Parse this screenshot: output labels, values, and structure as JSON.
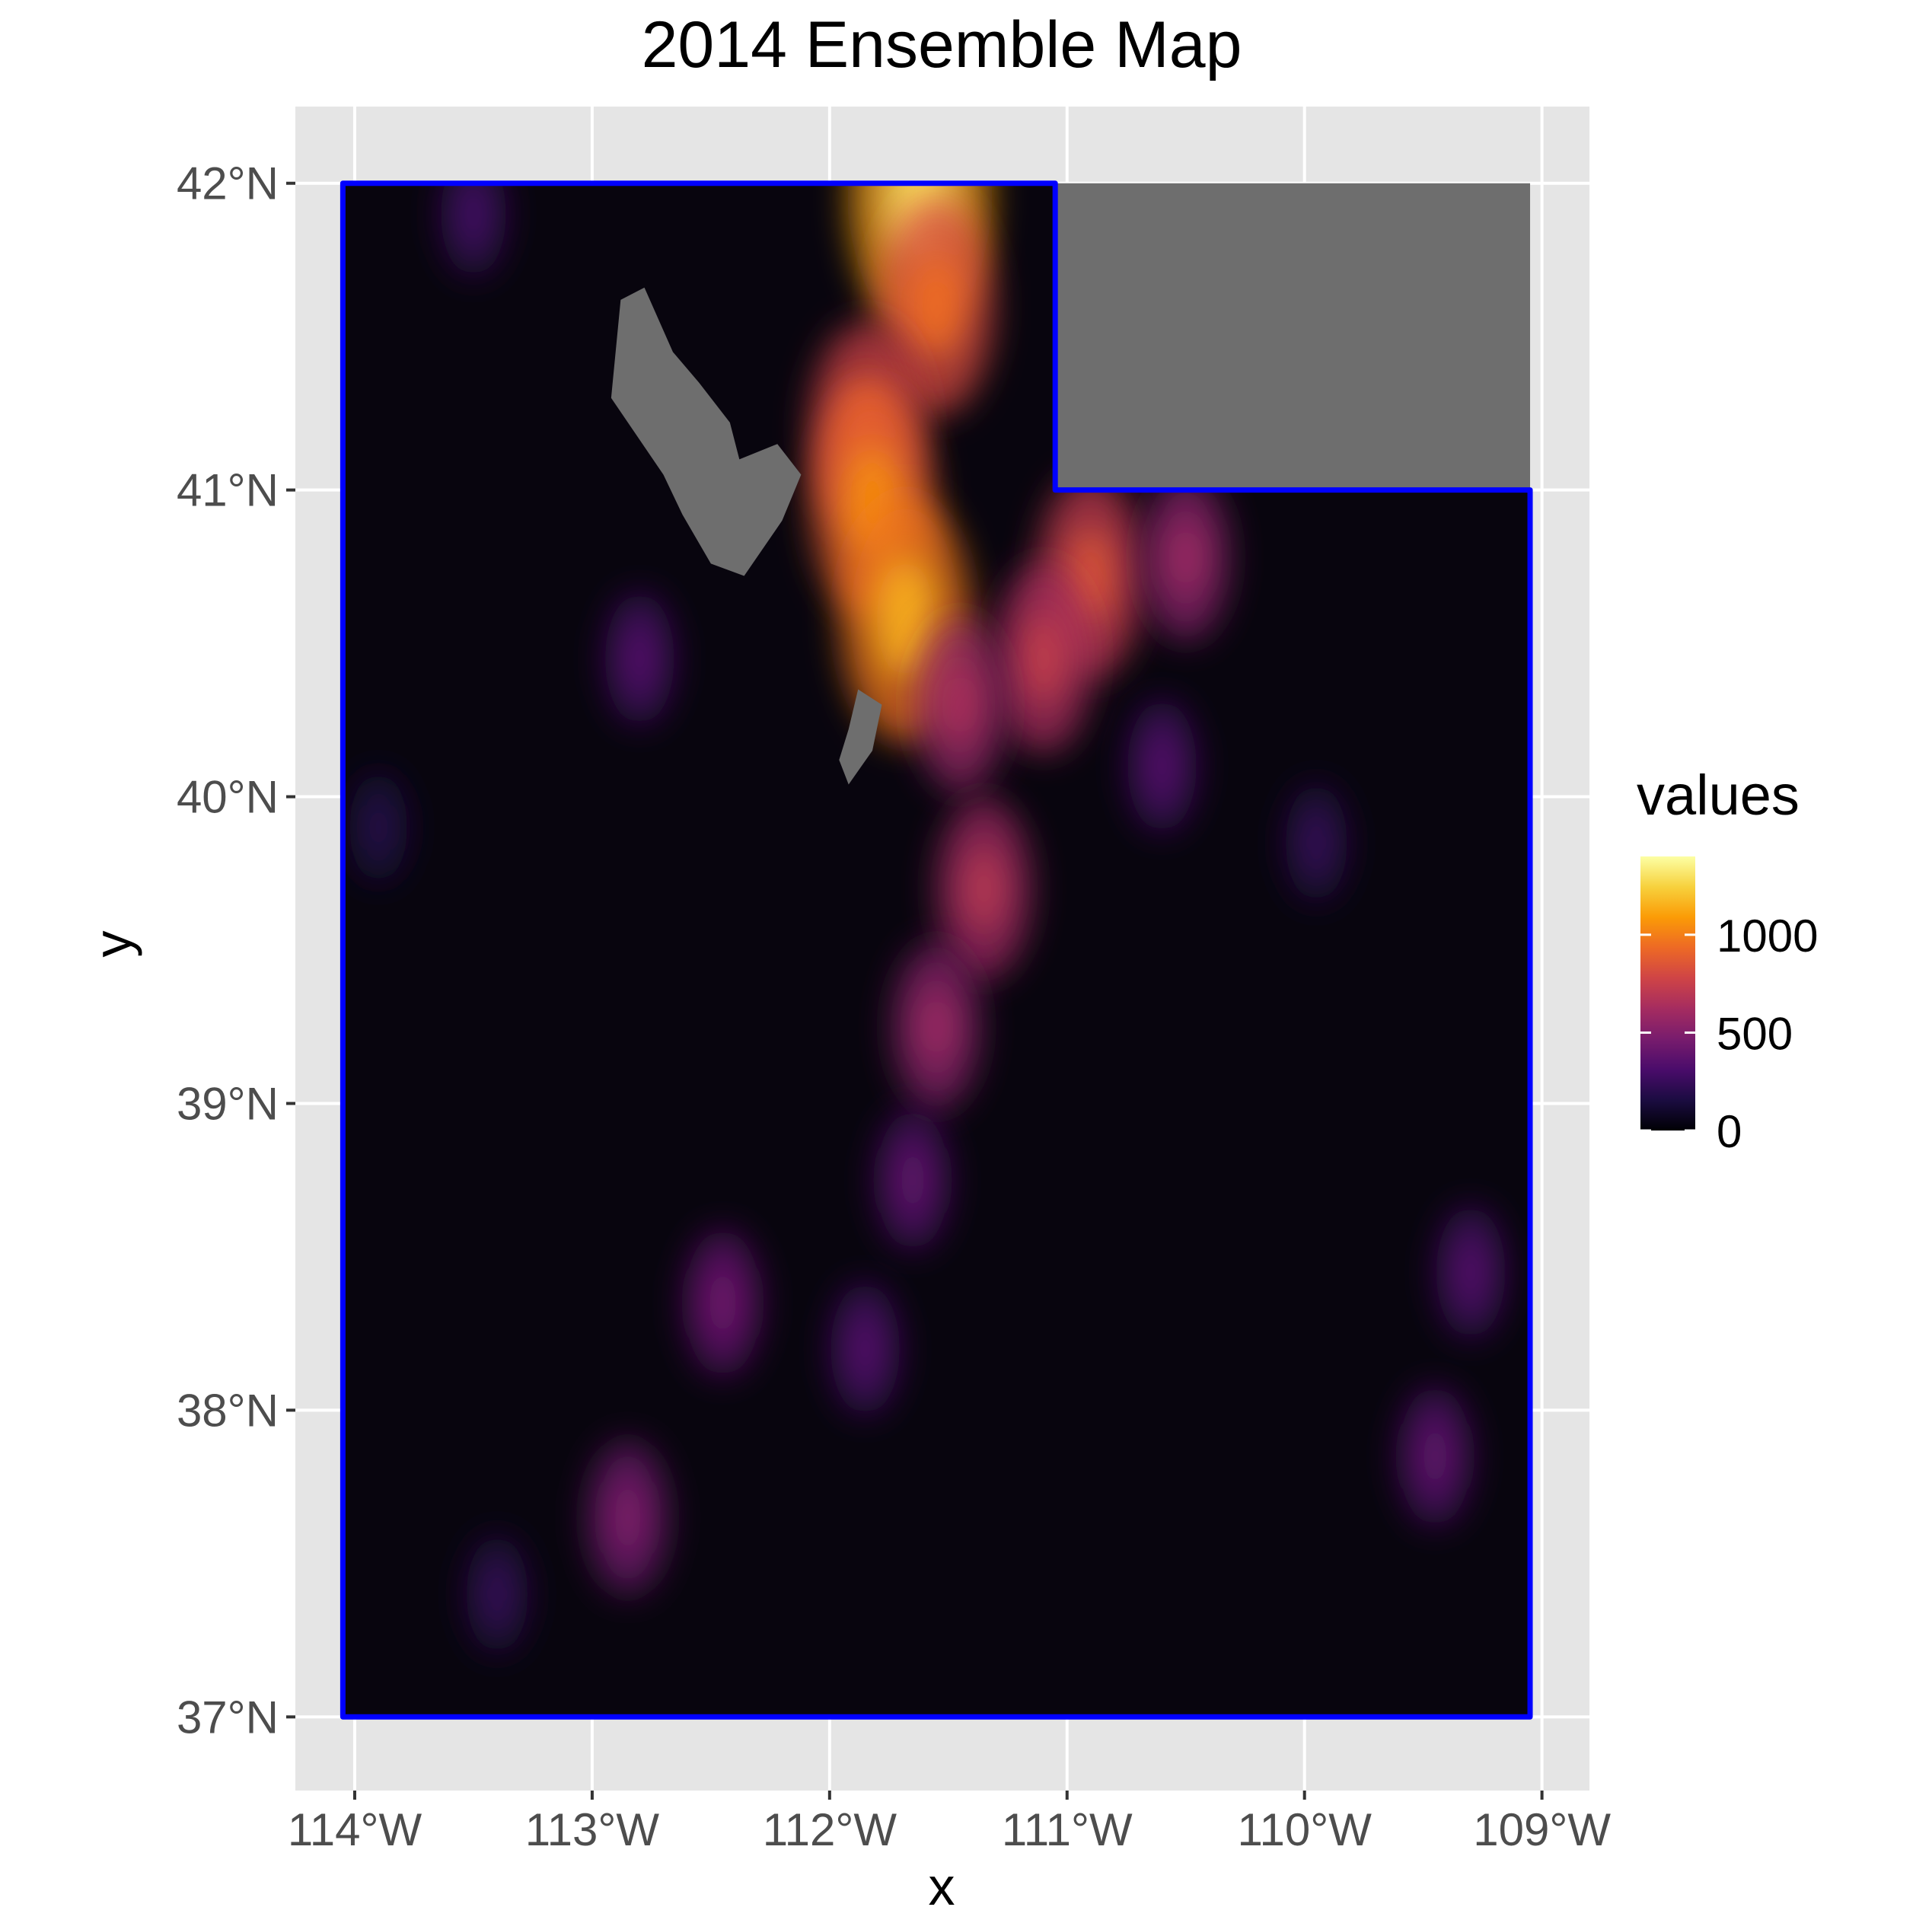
{
  "title": "2014 Ensemble Map",
  "x_label": "x",
  "y_label": "y",
  "x_ticks": [
    {
      "value": -114,
      "label": "114°W"
    },
    {
      "value": -113,
      "label": "113°W"
    },
    {
      "value": -112,
      "label": "112°W"
    },
    {
      "value": -111,
      "label": "111°W"
    },
    {
      "value": -110,
      "label": "110°W"
    },
    {
      "value": -109,
      "label": "109°W"
    }
  ],
  "y_ticks": [
    {
      "value": 37,
      "label": "37°N"
    },
    {
      "value": 38,
      "label": "38°N"
    },
    {
      "value": 39,
      "label": "39°N"
    },
    {
      "value": 40,
      "label": "40°N"
    },
    {
      "value": 41,
      "label": "41°N"
    },
    {
      "value": 42,
      "label": "42°N"
    }
  ],
  "legend": {
    "title": "values",
    "breaks": [
      {
        "value": 0,
        "label": "0"
      },
      {
        "value": 500,
        "label": "500"
      },
      {
        "value": 1000,
        "label": "1000"
      }
    ],
    "range": [
      0,
      1400
    ],
    "colormap": [
      "#000004",
      "#1b0c41",
      "#4a0c6b",
      "#781c6d",
      "#a52c60",
      "#cf4446",
      "#ed6925",
      "#fb9b06",
      "#f7d13d",
      "#fcffa4"
    ]
  },
  "colors": {
    "panel_background": "#e5e5e5",
    "grid": "#ffffff",
    "boundary": "#0000ff",
    "na_fill": "#6e6e6e",
    "base_fill": "#08050e"
  },
  "chart_data": {
    "type": "heatmap",
    "title": "2014 Ensemble Map",
    "xlabel": "x",
    "ylabel": "y",
    "xlim": [
      -114.25,
      -108.8
    ],
    "ylim": [
      36.76,
      42.25
    ],
    "value_range": [
      0,
      1400
    ],
    "boundary": "Utah state outline",
    "boundary_vertices": [
      {
        "x": -114.05,
        "y": 42.0
      },
      {
        "x": -111.05,
        "y": 42.0
      },
      {
        "x": -111.05,
        "y": 41.0
      },
      {
        "x": -109.05,
        "y": 41.0
      },
      {
        "x": -109.05,
        "y": 37.0
      },
      {
        "x": -114.05,
        "y": 37.0
      }
    ],
    "na_regions": [
      {
        "name": "wyoming corner",
        "points": [
          [
            -111.05,
            42.0
          ],
          [
            -109.05,
            42.0
          ],
          [
            -109.05,
            41.0
          ],
          [
            -111.05,
            41.0
          ]
        ]
      },
      {
        "name": "great salt lake",
        "points": [
          [
            -112.88,
            41.62
          ],
          [
            -112.78,
            41.66
          ],
          [
            -112.66,
            41.45
          ],
          [
            -112.55,
            41.35
          ],
          [
            -112.42,
            41.22
          ],
          [
            -112.38,
            41.1
          ],
          [
            -112.22,
            41.15
          ],
          [
            -112.12,
            41.05
          ],
          [
            -112.2,
            40.9
          ],
          [
            -112.36,
            40.72
          ],
          [
            -112.5,
            40.76
          ],
          [
            -112.62,
            40.92
          ],
          [
            -112.7,
            41.05
          ],
          [
            -112.92,
            41.3
          ]
        ]
      },
      {
        "name": "utah lake",
        "points": [
          [
            -111.88,
            40.35
          ],
          [
            -111.78,
            40.3
          ],
          [
            -111.82,
            40.15
          ],
          [
            -111.92,
            40.04
          ],
          [
            -111.96,
            40.12
          ],
          [
            -111.92,
            40.22
          ]
        ]
      }
    ],
    "hotspots": [
      {
        "x": -111.62,
        "y": 41.95,
        "value": 1300
      },
      {
        "x": -111.55,
        "y": 41.6,
        "value": 950
      },
      {
        "x": -111.85,
        "y": 41.2,
        "value": 900
      },
      {
        "x": -111.82,
        "y": 40.96,
        "value": 1050
      },
      {
        "x": -111.68,
        "y": 40.58,
        "value": 1150
      },
      {
        "x": -110.9,
        "y": 40.72,
        "value": 850
      },
      {
        "x": -110.5,
        "y": 40.78,
        "value": 600
      },
      {
        "x": -111.1,
        "y": 40.45,
        "value": 750
      },
      {
        "x": -111.45,
        "y": 40.3,
        "value": 650
      },
      {
        "x": -111.35,
        "y": 39.7,
        "value": 700
      },
      {
        "x": -111.55,
        "y": 39.25,
        "value": 600
      },
      {
        "x": -110.6,
        "y": 40.1,
        "value": 350
      },
      {
        "x": -109.95,
        "y": 39.85,
        "value": 250
      },
      {
        "x": -111.65,
        "y": 38.75,
        "value": 400
      },
      {
        "x": -112.45,
        "y": 38.35,
        "value": 450
      },
      {
        "x": -111.85,
        "y": 38.2,
        "value": 350
      },
      {
        "x": -112.85,
        "y": 37.65,
        "value": 500
      },
      {
        "x": -109.3,
        "y": 38.45,
        "value": 350
      },
      {
        "x": -109.45,
        "y": 37.85,
        "value": 400
      },
      {
        "x": -112.8,
        "y": 40.45,
        "value": 350
      },
      {
        "x": -113.5,
        "y": 41.9,
        "value": 300
      },
      {
        "x": -113.4,
        "y": 37.4,
        "value": 250
      },
      {
        "x": -113.9,
        "y": 39.9,
        "value": 200
      }
    ]
  }
}
